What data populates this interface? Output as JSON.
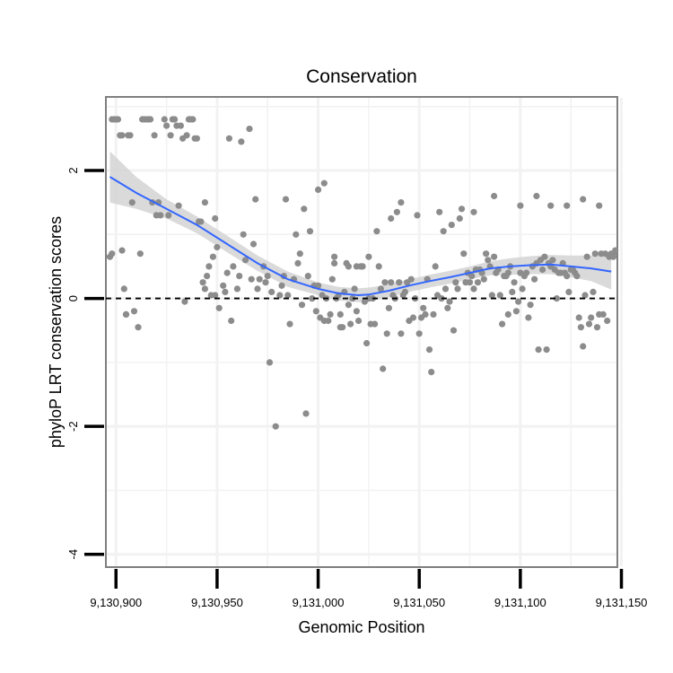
{
  "chart_data": {
    "type": "scatter",
    "title": "Conservation",
    "xlabel": "Genomic Position",
    "ylabel": "phyloP LRT conservation scores",
    "xlim": [
      9130895,
      9131148
    ],
    "ylim": [
      -4.2,
      3.15
    ],
    "x_ticks": [
      9130900,
      9130950,
      9131000,
      9131050,
      9131100,
      9131150
    ],
    "x_tick_labels": [
      "9,130,900",
      "9,130,950",
      "9,131,000",
      "9,131,050",
      "9,131,100",
      "9,131,150"
    ],
    "y_ticks": [
      -4,
      -2,
      0,
      2
    ],
    "y_tick_labels": [
      "-4",
      "-2",
      "0",
      "2"
    ],
    "reference_line": {
      "y": 0,
      "style": "dashed"
    },
    "colors": {
      "points": "#8c8c8c",
      "smooth": "#3366ff",
      "band": "#d3d3d3",
      "panel_border": "#7f7f7f",
      "grid": "#f2f2f2"
    },
    "series": [
      {
        "name": "phyloP score",
        "kind": "points",
        "x": [
          9130897,
          9130898,
          9130899,
          9130900,
          9130901,
          9130902,
          9130903,
          9130904,
          9130905,
          9130906,
          9130907,
          9130908,
          9130911,
          9130913,
          9130914,
          9130915,
          9130916,
          9130917,
          9130919,
          9130920,
          9130922,
          9130924,
          9130925,
          9130927,
          9130928,
          9130929,
          9130930,
          9130932,
          9130933,
          9130935,
          9130936,
          9130937,
          9130938,
          9130939,
          9130940,
          9130941,
          9130942,
          9130943,
          9130944,
          9130945,
          9130946,
          9130947,
          9130948,
          9130949,
          9130950,
          9130951,
          9130953,
          9130954,
          9130955,
          9130957,
          9130958,
          9130960,
          9130961,
          9130963,
          9130964,
          9130966,
          9130967,
          9130968,
          9130970,
          9130971,
          9130973,
          9130974,
          9130975,
          9130977,
          9130979,
          9130981,
          9130982,
          9130983,
          9130985,
          9130986,
          9130988,
          9130990,
          9130991,
          9130992,
          9130994,
          9130995,
          9130996,
          9130997,
          9130998,
          9130999,
          9131000,
          9131001,
          9131002,
          9131003,
          9131004,
          9131005,
          9131006,
          9131007,
          9131008,
          9131009,
          9131010,
          9131011,
          9131012,
          9131013,
          9131014,
          9131015,
          9131016,
          9131017,
          9131018,
          9131019,
          9131020,
          9131021,
          9131022,
          9131023,
          9131024,
          9131025,
          9131026,
          9131027,
          9131028,
          9131030,
          9131031,
          9131032,
          9131033,
          9131034,
          9131035,
          9131036,
          9131037,
          9131038,
          9131039,
          9131040,
          9131041,
          9131042,
          9131043,
          9131044,
          9131045,
          9131046,
          9131047,
          9131048,
          9131050,
          9131051,
          9131052,
          9131053,
          9131054,
          9131055,
          9131057,
          9131058,
          9131059,
          9131061,
          9131062,
          9131063,
          9131064,
          9131066,
          9131067,
          9131068,
          9131069,
          9131070,
          9131072,
          9131073,
          9131074,
          9131075,
          9131076,
          9131077,
          9131078,
          9131079,
          9131080,
          9131081,
          9131082,
          9131083,
          9131084,
          9131085,
          9131086,
          9131087,
          9131088,
          9131089,
          9131090,
          9131091,
          9131092,
          9131093,
          9131094,
          9131095,
          9131096,
          9131097,
          9131098,
          9131099,
          9131100,
          9131101,
          9131102,
          9131103,
          9131104,
          9131105,
          9131106,
          9131107,
          9131108,
          9131109,
          9131110,
          9131111,
          9131112,
          9131113,
          9131114,
          9131115,
          9131116,
          9131117,
          9131118,
          9131119,
          9131120,
          9131121,
          9131122,
          9131123,
          9131124,
          9131125,
          9131126,
          9131127,
          9131128,
          9131129,
          9131130,
          9131131,
          9131132,
          9131133,
          9131134,
          9131135,
          9131136,
          9131137,
          9131138,
          9131139,
          9131140,
          9131141,
          9131142,
          9131143,
          9131144,
          9131145,
          9131146,
          9131147,
          9130898,
          9130903,
          9130905,
          9130909,
          9130912,
          9130918,
          9130921,
          9130926,
          9130931,
          9130934,
          9130944,
          9130949,
          9130956,
          9130962,
          9130969,
          9130976,
          9130984,
          9130989,
          9130993,
          9131000,
          9131003,
          9131008,
          9131011,
          9131015,
          9131019,
          9131025,
          9131029,
          9131036,
          9131041,
          9131049,
          9131056,
          9131060,
          9131065,
          9131071,
          9131077,
          9131087,
          9131094,
          9131100,
          9131108,
          9131115,
          9131123,
          9131131,
          9131139,
          9131146
        ],
        "y": [
          0.65,
          2.8,
          2.8,
          2.8,
          2.8,
          2.55,
          2.55,
          0.15,
          -0.25,
          2.55,
          2.55,
          1.5,
          -0.45,
          2.8,
          2.8,
          2.8,
          2.8,
          2.8,
          2.55,
          1.3,
          1.3,
          2.8,
          2.7,
          2.55,
          2.8,
          2.8,
          2.7,
          2.7,
          2.5,
          2.55,
          2.8,
          2.8,
          2.8,
          2.5,
          2.5,
          1.2,
          1.2,
          0.25,
          0.15,
          0.35,
          0.5,
          0.05,
          0.65,
          0.05,
          0.8,
          -0.15,
          0.2,
          0.1,
          0.4,
          -0.35,
          0.5,
          0.15,
          0.35,
          1.0,
          0.6,
          2.65,
          0.3,
          0.85,
          0.15,
          0.3,
          0.5,
          0.25,
          0.35,
          0.1,
          -2.0,
          0.05,
          0.2,
          0.35,
          0.05,
          -0.4,
          0.3,
          0.55,
          0.7,
          -0.1,
          -1.8,
          0.35,
          1.05,
          0.0,
          0.2,
          -0.2,
          0.2,
          -0.3,
          0.05,
          -0.35,
          0.0,
          -0.35,
          -0.25,
          0.3,
          0.65,
          0.0,
          0.05,
          -0.25,
          -0.45,
          0.1,
          0.55,
          -0.1,
          -0.4,
          0.0,
          0.15,
          0.5,
          -0.35,
          0.5,
          0.5,
          -0.05,
          -0.7,
          0.0,
          -0.4,
          0.0,
          -0.4,
          0.5,
          0.15,
          -1.1,
          0.25,
          -0.55,
          -0.15,
          0.25,
          0.05,
          0.0,
          1.35,
          0.25,
          -0.55,
          0.05,
          0.1,
          0.25,
          -0.35,
          0.3,
          -0.3,
          0.0,
          -0.55,
          -0.3,
          -0.15,
          -0.25,
          0.3,
          -0.8,
          -0.25,
          0.5,
          0.05,
          0.0,
          1.05,
          0.15,
          -0.15,
          1.15,
          -0.5,
          0.25,
          0.15,
          1.25,
          0.7,
          0.25,
          0.4,
          0.25,
          0.35,
          0.15,
          0.45,
          0.25,
          0.45,
          0.4,
          0.3,
          0.7,
          0.6,
          0.5,
          0.05,
          0.65,
          0.4,
          0.45,
          0.05,
          -0.4,
          0.35,
          0.35,
          0.4,
          0.5,
          0.1,
          0.25,
          -0.2,
          -0.05,
          0.4,
          0.15,
          0.35,
          0.4,
          -0.3,
          -0.1,
          0.5,
          0.3,
          0.55,
          -0.8,
          0.6,
          0.45,
          0.65,
          -0.8,
          0.55,
          0.5,
          0.6,
          0.45,
          0.0,
          0.4,
          0.4,
          0.55,
          0.4,
          0.35,
          0.1,
          0.45,
          0.45,
          0.4,
          0.35,
          -0.3,
          -0.45,
          -0.75,
          0.05,
          0.65,
          -0.4,
          -0.3,
          0.1,
          0.7,
          -0.45,
          -0.25,
          0.7,
          -0.25,
          0.7,
          -0.35,
          0.65,
          0.7,
          0.7,
          0.75,
          0.7,
          0.75,
          -0.25,
          -0.2,
          0.7,
          1.5,
          1.5,
          1.3,
          1.45,
          -0.05,
          1.5,
          1.25,
          2.5,
          2.45,
          1.55,
          -1.0,
          1.55,
          1.0,
          1.4,
          1.7,
          1.8,
          0.55,
          -0.45,
          0.5,
          -0.2,
          0.65,
          1.05,
          1.25,
          1.5,
          1.3,
          -1.15,
          1.35,
          -0.05,
          1.4,
          1.35,
          1.6,
          -0.25,
          1.45,
          1.6,
          1.45,
          1.45,
          1.55,
          1.45,
          0.65
        ]
      },
      {
        "name": "loess fit",
        "kind": "line",
        "x": [
          9130897,
          9130910,
          9130925,
          9130940,
          9130955,
          9130970,
          9130985,
          9131000,
          9131010,
          9131020,
          9131025,
          9131035,
          9131045,
          9131055,
          9131065,
          9131075,
          9131085,
          9131095,
          9131105,
          9131115,
          9131125,
          9131135,
          9131145
        ],
        "y": [
          1.9,
          1.65,
          1.4,
          1.15,
          0.85,
          0.55,
          0.3,
          0.15,
          0.08,
          0.05,
          0.06,
          0.12,
          0.2,
          0.27,
          0.33,
          0.4,
          0.47,
          0.5,
          0.52,
          0.53,
          0.5,
          0.47,
          0.42
        ],
        "band_upper": [
          2.3,
          1.9,
          1.55,
          1.28,
          0.98,
          0.67,
          0.42,
          0.25,
          0.18,
          0.16,
          0.17,
          0.22,
          0.3,
          0.37,
          0.43,
          0.5,
          0.58,
          0.63,
          0.66,
          0.68,
          0.67,
          0.67,
          0.7
        ],
        "band_lower": [
          1.5,
          1.4,
          1.25,
          1.02,
          0.72,
          0.43,
          0.18,
          0.05,
          -0.03,
          -0.06,
          -0.05,
          0.02,
          0.1,
          0.17,
          0.23,
          0.3,
          0.36,
          0.37,
          0.38,
          0.38,
          0.33,
          0.27,
          0.14
        ]
      }
    ]
  }
}
